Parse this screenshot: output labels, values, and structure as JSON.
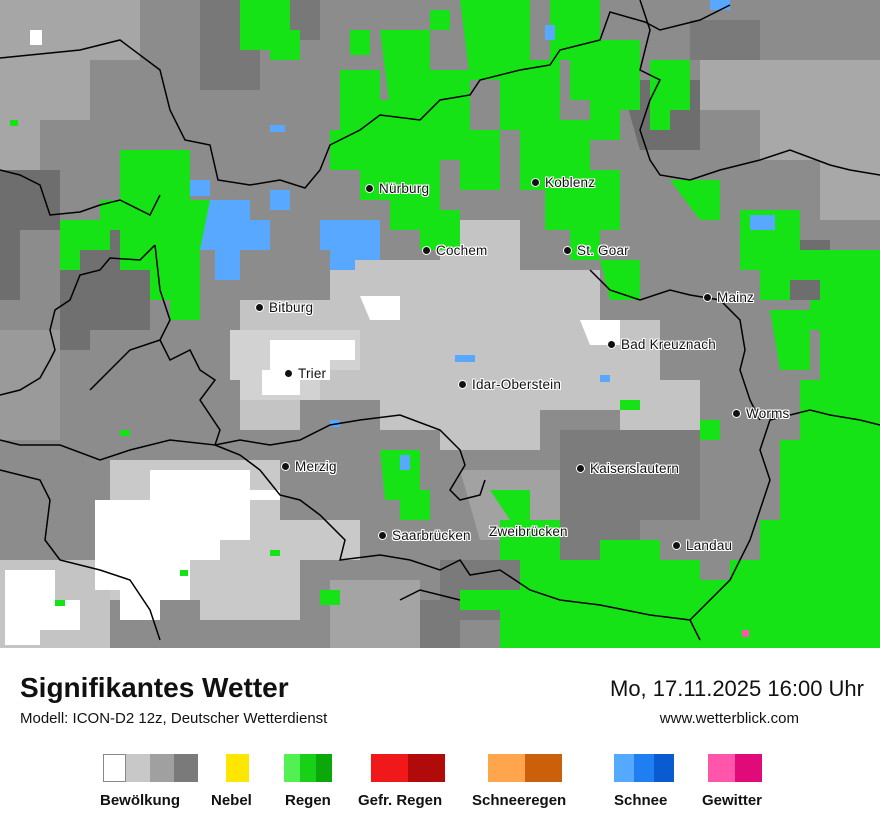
{
  "map": {
    "cities": [
      {
        "name": "Nürburg"
      },
      {
        "name": "Koblenz"
      },
      {
        "name": "Cochem"
      },
      {
        "name": "St. Goar"
      },
      {
        "name": "Mainz"
      },
      {
        "name": "Bitburg"
      },
      {
        "name": "Bad Kreuznach"
      },
      {
        "name": "Trier"
      },
      {
        "name": "Idar-Oberstein"
      },
      {
        "name": "Worms"
      },
      {
        "name": "Merzig"
      },
      {
        "name": "Kaiserslautern"
      },
      {
        "name": "Saarbrücken"
      },
      {
        "name": "Zweibrücken"
      },
      {
        "name": "Landau"
      }
    ]
  },
  "footer": {
    "title": "Signifikantes Wetter",
    "model": "Modell: ICON-D2 12z, Deutscher Wetterdienst",
    "datetime": "Mo, 17.11.2025 16:00 Uhr",
    "site": "www.wetterblick.com"
  },
  "legend": [
    {
      "label": "Bewölkung",
      "colors": [
        "#ffffff",
        "#c8c8c8",
        "#a0a0a0",
        "#7a7a7a"
      ]
    },
    {
      "label": "Nebel",
      "colors": [
        "#ffe600"
      ]
    },
    {
      "label": "Regen",
      "colors": [
        "#52f052",
        "#18d018",
        "#0aa80a"
      ]
    },
    {
      "label": "Gefr. Regen",
      "colors": [
        "#f01818",
        "#b00a0a"
      ]
    },
    {
      "label": "Schneeregen",
      "colors": [
        "#ffa54d",
        "#cc5f0a"
      ]
    },
    {
      "label": "Schnee",
      "colors": [
        "#55aaff",
        "#1f7ef0",
        "#0a5ad0"
      ]
    },
    {
      "label": "Gewitter",
      "colors": [
        "#ff55aa",
        "#e00a78"
      ]
    }
  ],
  "colors": {
    "cloud_dark": "#7a7a7a",
    "cloud_mid": "#a0a0a0",
    "cloud_light": "#c8c8c8",
    "clear": "#ffffff",
    "rain": "#18e018",
    "snow": "#5aa8ff",
    "thunder": "#ff55aa",
    "border": "#000000"
  }
}
